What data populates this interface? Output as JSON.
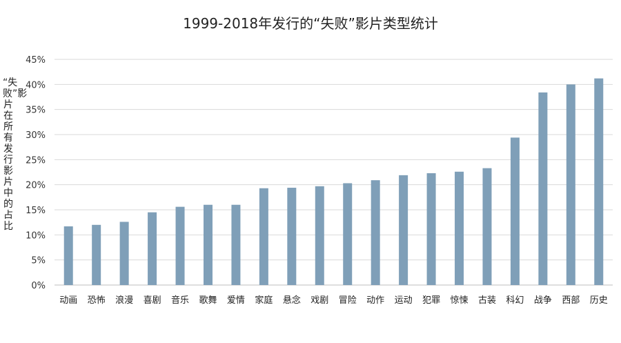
{
  "chart_data": {
    "type": "bar",
    "title": "1999-2018年发行的“失败”影片类型统计",
    "xlabel": "",
    "ylabel": "“失败”影片在所有发行影片中的占比",
    "ylim": [
      0,
      45
    ],
    "yticks": [
      "0%",
      "5%",
      "10%",
      "15%",
      "20%",
      "25%",
      "30%",
      "35%",
      "40%",
      "45%"
    ],
    "grid": true,
    "bar_color": "#7f9fb8",
    "categories": [
      "动画",
      "恐怖",
      "浪漫",
      "喜剧",
      "音乐",
      "歌舞",
      "爱情",
      "家庭",
      "悬念",
      "戏剧",
      "冒险",
      "动作",
      "运动",
      "犯罪",
      "惊悚",
      "古装",
      "科幻",
      "战争",
      "西部",
      "历史"
    ],
    "values": [
      11.7,
      12.0,
      12.6,
      14.5,
      15.6,
      16.0,
      16.0,
      19.3,
      19.4,
      19.7,
      20.3,
      20.9,
      21.9,
      22.3,
      22.6,
      23.3,
      29.4,
      38.4,
      40.0,
      41.2
    ]
  }
}
